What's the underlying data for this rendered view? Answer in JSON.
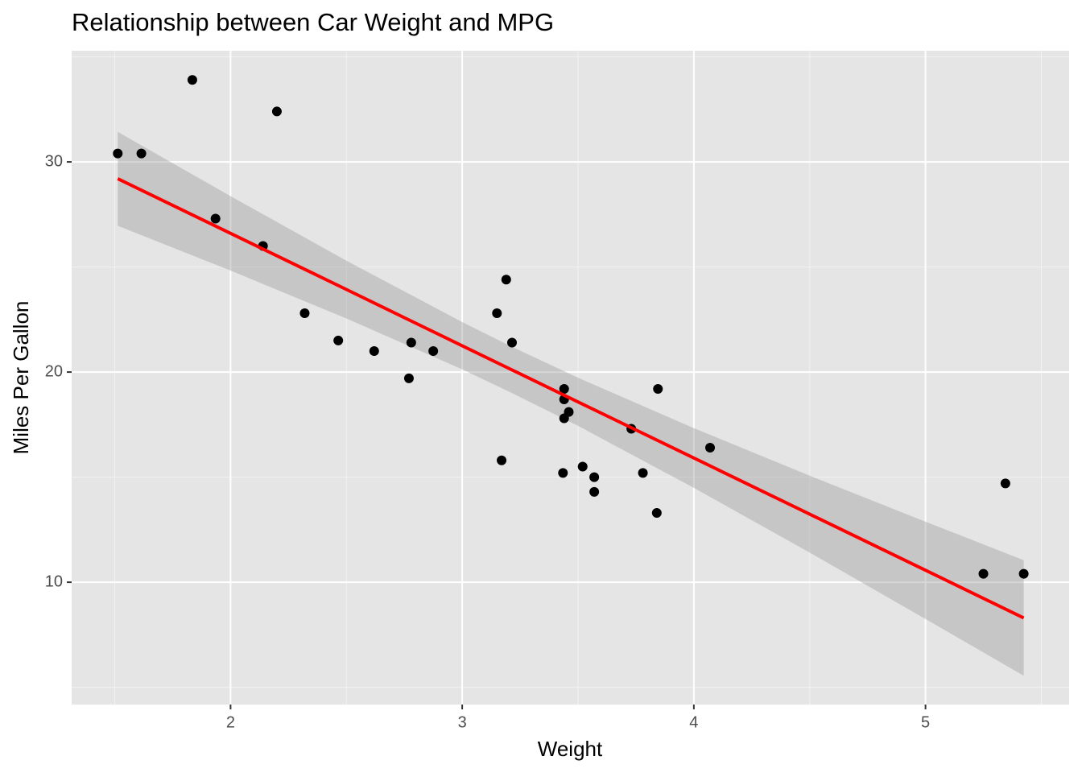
{
  "chart_data": {
    "type": "scatter",
    "title": "Relationship between Car Weight and MPG",
    "x_label": "Weight",
    "y_label": "Miles Per Gallon",
    "xlim": [
      1.314,
      5.62
    ],
    "ylim": [
      4.18,
      35.29
    ],
    "xticks": [
      2,
      3,
      4,
      5
    ],
    "yticks": [
      10,
      20,
      30
    ],
    "x_minor_ticks": [
      1.5,
      2.5,
      3.5,
      4.5,
      5.5
    ],
    "y_minor_ticks": [
      5,
      15,
      25,
      35
    ],
    "grid": true,
    "points": {
      "color": "#000000",
      "x": [
        2.62,
        2.875,
        2.32,
        3.215,
        3.44,
        3.46,
        3.57,
        3.19,
        3.15,
        3.44,
        3.44,
        4.07,
        3.73,
        3.78,
        5.25,
        5.424,
        5.345,
        2.2,
        1.615,
        1.835,
        2.465,
        3.52,
        3.435,
        3.84,
        3.845,
        1.935,
        2.14,
        1.513,
        3.17,
        2.77,
        3.57,
        2.78
      ],
      "y": [
        21.0,
        21.0,
        22.8,
        21.4,
        18.7,
        18.1,
        14.3,
        24.4,
        22.8,
        19.2,
        17.8,
        16.4,
        17.3,
        15.2,
        10.4,
        10.4,
        14.7,
        32.4,
        30.4,
        33.9,
        21.5,
        15.5,
        15.2,
        13.3,
        19.2,
        27.3,
        26.0,
        30.4,
        15.8,
        19.7,
        15.0,
        21.4
      ]
    },
    "fit": {
      "color": "#ff0000",
      "band_color": "#999999",
      "x": [
        1.513,
        2,
        2.5,
        3,
        3.217,
        3.5,
        4,
        4.5,
        5,
        5.424
      ],
      "y": [
        29.2,
        26.6,
        23.93,
        21.25,
        20.09,
        18.58,
        15.91,
        13.24,
        10.57,
        8.3
      ],
      "lower": [
        26.96,
        24.83,
        22.55,
        20.13,
        18.99,
        17.44,
        14.49,
        11.41,
        8.25,
        5.55
      ],
      "upper": [
        31.43,
        28.37,
        25.3,
        22.38,
        21.19,
        19.73,
        17.33,
        15.07,
        12.88,
        11.05
      ]
    }
  }
}
